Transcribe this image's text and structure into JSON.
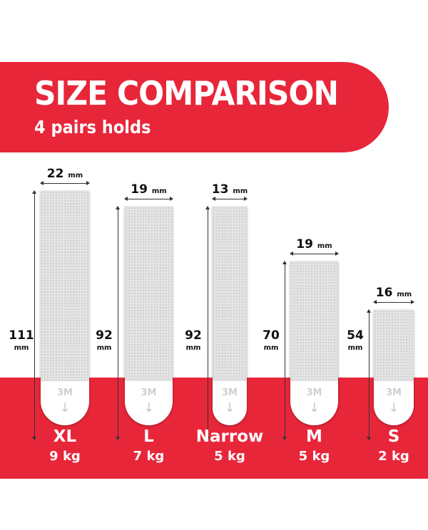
{
  "header": {
    "title": "SIZE COMPARISON",
    "subtitle": "4 pairs holds"
  },
  "colors": {
    "brand_red": "#e8263a",
    "strip": "#e4e4e4"
  },
  "unit": "mm",
  "strips": [
    {
      "name": "XL",
      "capacity": "9 kg",
      "width": "22",
      "length": "111",
      "logo": "3M",
      "icon": "arrow-down-icon"
    },
    {
      "name": "L",
      "capacity": "7 kg",
      "width": "19",
      "length": "92",
      "logo": "3M",
      "icon": "arrow-down-icon"
    },
    {
      "name": "Narrow",
      "capacity": "5 kg",
      "width": "13",
      "length": "92",
      "logo": "3M",
      "icon": "arrow-down-icon"
    },
    {
      "name": "M",
      "capacity": "5 kg",
      "width": "19",
      "length": "70",
      "logo": "3M",
      "icon": "arrow-down-icon"
    },
    {
      "name": "S",
      "capacity": "2 kg",
      "width": "16",
      "length": "54",
      "logo": "3M",
      "icon": "arrow-down-icon"
    }
  ]
}
